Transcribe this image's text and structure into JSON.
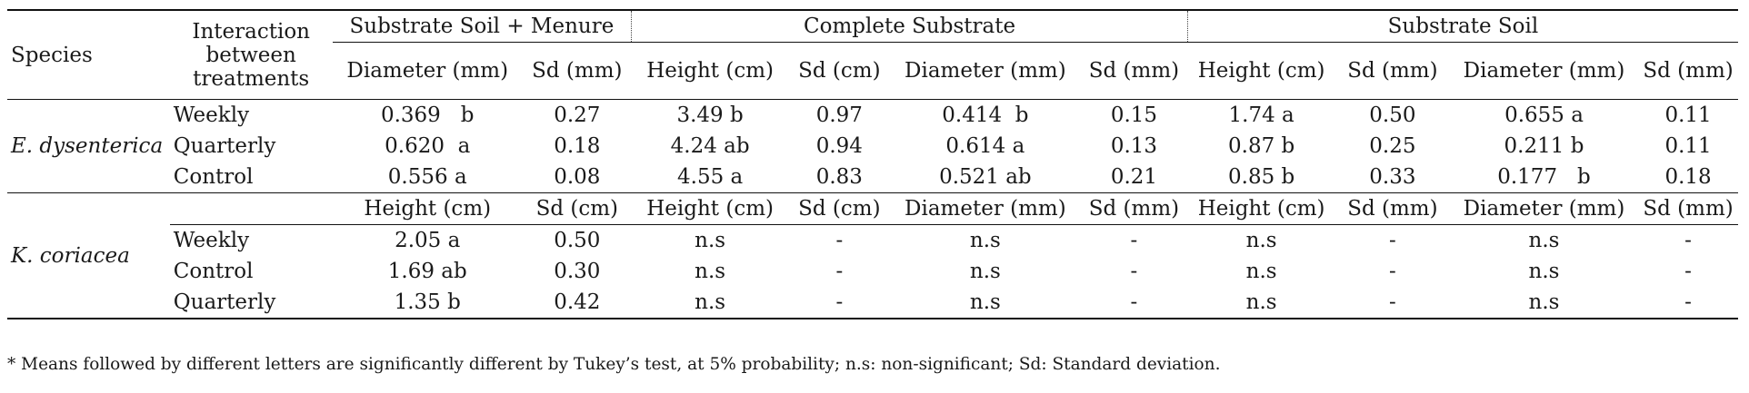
{
  "header": {
    "species": "Species",
    "interaction": [
      "Interaction",
      "between",
      "treatments"
    ],
    "groups": [
      "Substrate Soil + Menure",
      "Complete Substrate",
      "Substrate Soil"
    ],
    "subheaders": [
      "Diameter (mm)",
      "Sd (mm)",
      "Height (cm)",
      "Sd (cm)",
      "Diameter (mm)",
      "Sd (mm)",
      "Height (cm)",
      "Sd (mm)",
      "Diameter (mm)",
      "Sd (mm)"
    ]
  },
  "section1": {
    "species": "E. dysenterica",
    "rows": [
      {
        "treatment": "Weekly",
        "cells": [
          "0.369   b",
          "0.27",
          "3.49 b",
          "0.97",
          "0.414  b",
          "0.15",
          "1.74 a",
          "0.50",
          "0.655 a",
          "0.11"
        ]
      },
      {
        "treatment": "Quarterly",
        "cells": [
          "0.620  a",
          "0.18",
          "4.24 ab",
          "0.94",
          "0.614 a",
          "0.13",
          "0.87 b",
          "0.25",
          "0.211 b",
          "0.11"
        ]
      },
      {
        "treatment": "Control",
        "cells": [
          "0.556 a",
          "0.08",
          "4.55 a",
          "0.83",
          "0.521 ab",
          "0.21",
          "0.85 b",
          "0.33",
          "0.177   b",
          "0.18"
        ]
      }
    ]
  },
  "section2": {
    "species": "K. coriacea",
    "subheaders": [
      "Height (cm)",
      "Sd (cm)",
      "Height (cm)",
      "Sd (cm)",
      "Diameter (mm)",
      "Sd (mm)",
      "Height (cm)",
      "Sd (mm)",
      "Diameter (mm)",
      "Sd (mm)"
    ],
    "rows": [
      {
        "treatment": "Weekly",
        "cells": [
          "2.05 a",
          "0.50",
          "n.s",
          "-",
          "n.s",
          "-",
          "n.s",
          "-",
          "n.s",
          "-"
        ]
      },
      {
        "treatment": "Control",
        "cells": [
          "1.69 ab",
          "0.30",
          "n.s",
          "-",
          "n.s",
          "-",
          "n.s",
          "-",
          "n.s",
          "-"
        ]
      },
      {
        "treatment": "Quarterly",
        "cells": [
          "1.35 b",
          "0.42",
          "n.s",
          "-",
          "n.s",
          "-",
          "n.s",
          "-",
          "n.s",
          "-"
        ]
      }
    ]
  },
  "footnote": "* Means followed by different letters are significantly different by Tukey’s test, at 5% probability; n.s: non-significant; Sd: Standard deviation."
}
